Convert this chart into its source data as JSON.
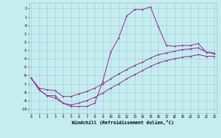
{
  "bg_color": "#c5edf0",
  "line_color": "#993399",
  "grid_color": "#a0cdd0",
  "xlim": [
    -0.3,
    23.3
  ],
  "ylim": [
    -10.5,
    2.7
  ],
  "yticks": [
    -10,
    -9,
    -8,
    -7,
    -6,
    -5,
    -4,
    -3,
    -2,
    -1,
    0,
    1,
    2
  ],
  "xticks": [
    0,
    1,
    2,
    3,
    4,
    5,
    6,
    7,
    8,
    9,
    10,
    11,
    12,
    13,
    14,
    15,
    16,
    17,
    18,
    19,
    20,
    21,
    22,
    23
  ],
  "xlabel": "Windchill (Refroidissement éolien,°C)",
  "x": [
    0,
    1,
    2,
    3,
    4,
    5,
    6,
    7,
    8,
    9,
    10,
    11,
    12,
    13,
    14,
    15,
    16,
    17,
    18,
    19,
    20,
    21,
    22,
    23
  ],
  "y_main": [
    -6.3,
    -7.7,
    -8.4,
    -8.4,
    -9.3,
    -9.7,
    -9.7,
    -9.7,
    -9.3,
    -6.7,
    -3.2,
    -1.5,
    1.1,
    1.9,
    1.9,
    2.2,
    -0.2,
    -2.4,
    -2.5,
    -2.4,
    -2.4,
    -2.2,
    -3.2,
    -3.4
  ],
  "y_diag1": [
    -6.3,
    -7.5,
    -7.7,
    -7.8,
    -8.5,
    -8.5,
    -8.2,
    -7.9,
    -7.5,
    -7.0,
    -6.4,
    -5.8,
    -5.3,
    -4.8,
    -4.4,
    -3.9,
    -3.5,
    -3.3,
    -3.1,
    -2.9,
    -2.8,
    -2.7,
    -3.2,
    -3.3
  ],
  "y_diag2": [
    -6.3,
    -7.7,
    -8.4,
    -8.7,
    -9.3,
    -9.5,
    -9.3,
    -9.0,
    -8.6,
    -8.1,
    -7.5,
    -7.0,
    -6.4,
    -5.9,
    -5.4,
    -4.9,
    -4.5,
    -4.2,
    -4.0,
    -3.8,
    -3.7,
    -3.5,
    -3.7,
    -3.7
  ]
}
